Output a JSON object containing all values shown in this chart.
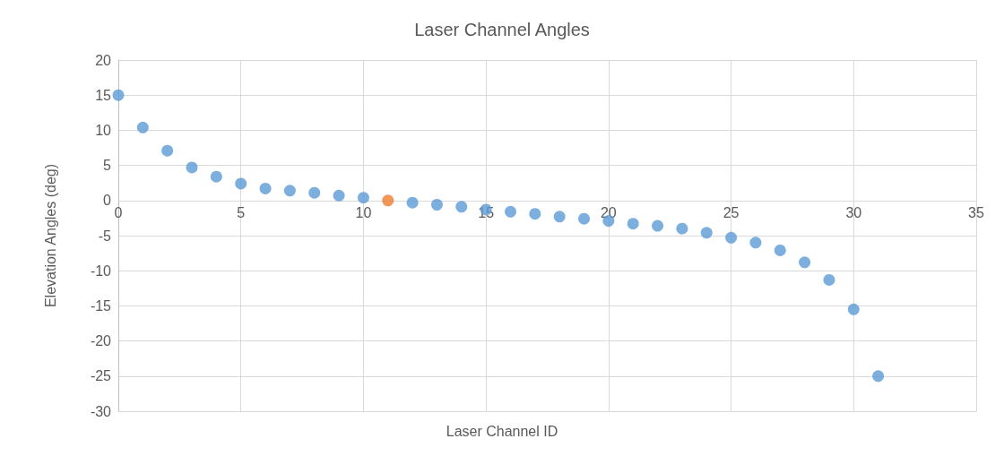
{
  "chart_data": {
    "type": "scatter",
    "title": "Laser Channel Angles",
    "xlabel": "Laser Channel ID",
    "ylabel": "Elevation Angles (deg)",
    "x": [
      0,
      1,
      2,
      3,
      4,
      5,
      6,
      7,
      8,
      9,
      10,
      11,
      12,
      13,
      14,
      15,
      16,
      17,
      18,
      19,
      20,
      21,
      22,
      23,
      24,
      25,
      26,
      27,
      28,
      29,
      30,
      31
    ],
    "values": [
      15,
      10.4,
      7.1,
      4.7,
      3.4,
      2.4,
      1.7,
      1.4,
      1.1,
      0.7,
      0.4,
      0,
      -0.3,
      -0.6,
      -0.9,
      -1.3,
      -1.6,
      -1.9,
      -2.3,
      -2.6,
      -2.9,
      -3.3,
      -3.6,
      -4,
      -4.6,
      -5.3,
      -6,
      -7.1,
      -8.8,
      -11.3,
      -15.5,
      -25
    ],
    "colors": [
      "#5b9bd5",
      "#5b9bd5",
      "#5b9bd5",
      "#5b9bd5",
      "#5b9bd5",
      "#5b9bd5",
      "#5b9bd5",
      "#5b9bd5",
      "#5b9bd5",
      "#5b9bd5",
      "#5b9bd5",
      "#ed7d31",
      "#5b9bd5",
      "#5b9bd5",
      "#5b9bd5",
      "#5b9bd5",
      "#5b9bd5",
      "#5b9bd5",
      "#5b9bd5",
      "#5b9bd5",
      "#5b9bd5",
      "#5b9bd5",
      "#5b9bd5",
      "#5b9bd5",
      "#5b9bd5",
      "#5b9bd5",
      "#5b9bd5",
      "#5b9bd5",
      "#5b9bd5",
      "#5b9bd5",
      "#5b9bd5",
      "#5b9bd5"
    ],
    "xlim": [
      0,
      35
    ],
    "xticks": [
      0,
      5,
      10,
      15,
      20,
      25,
      30,
      35
    ],
    "ylim": [
      -30,
      20
    ],
    "yticks": [
      -30,
      -25,
      -20,
      -15,
      -10,
      -5,
      0,
      5,
      10,
      15,
      20
    ],
    "grid": true,
    "marker": "circle"
  }
}
